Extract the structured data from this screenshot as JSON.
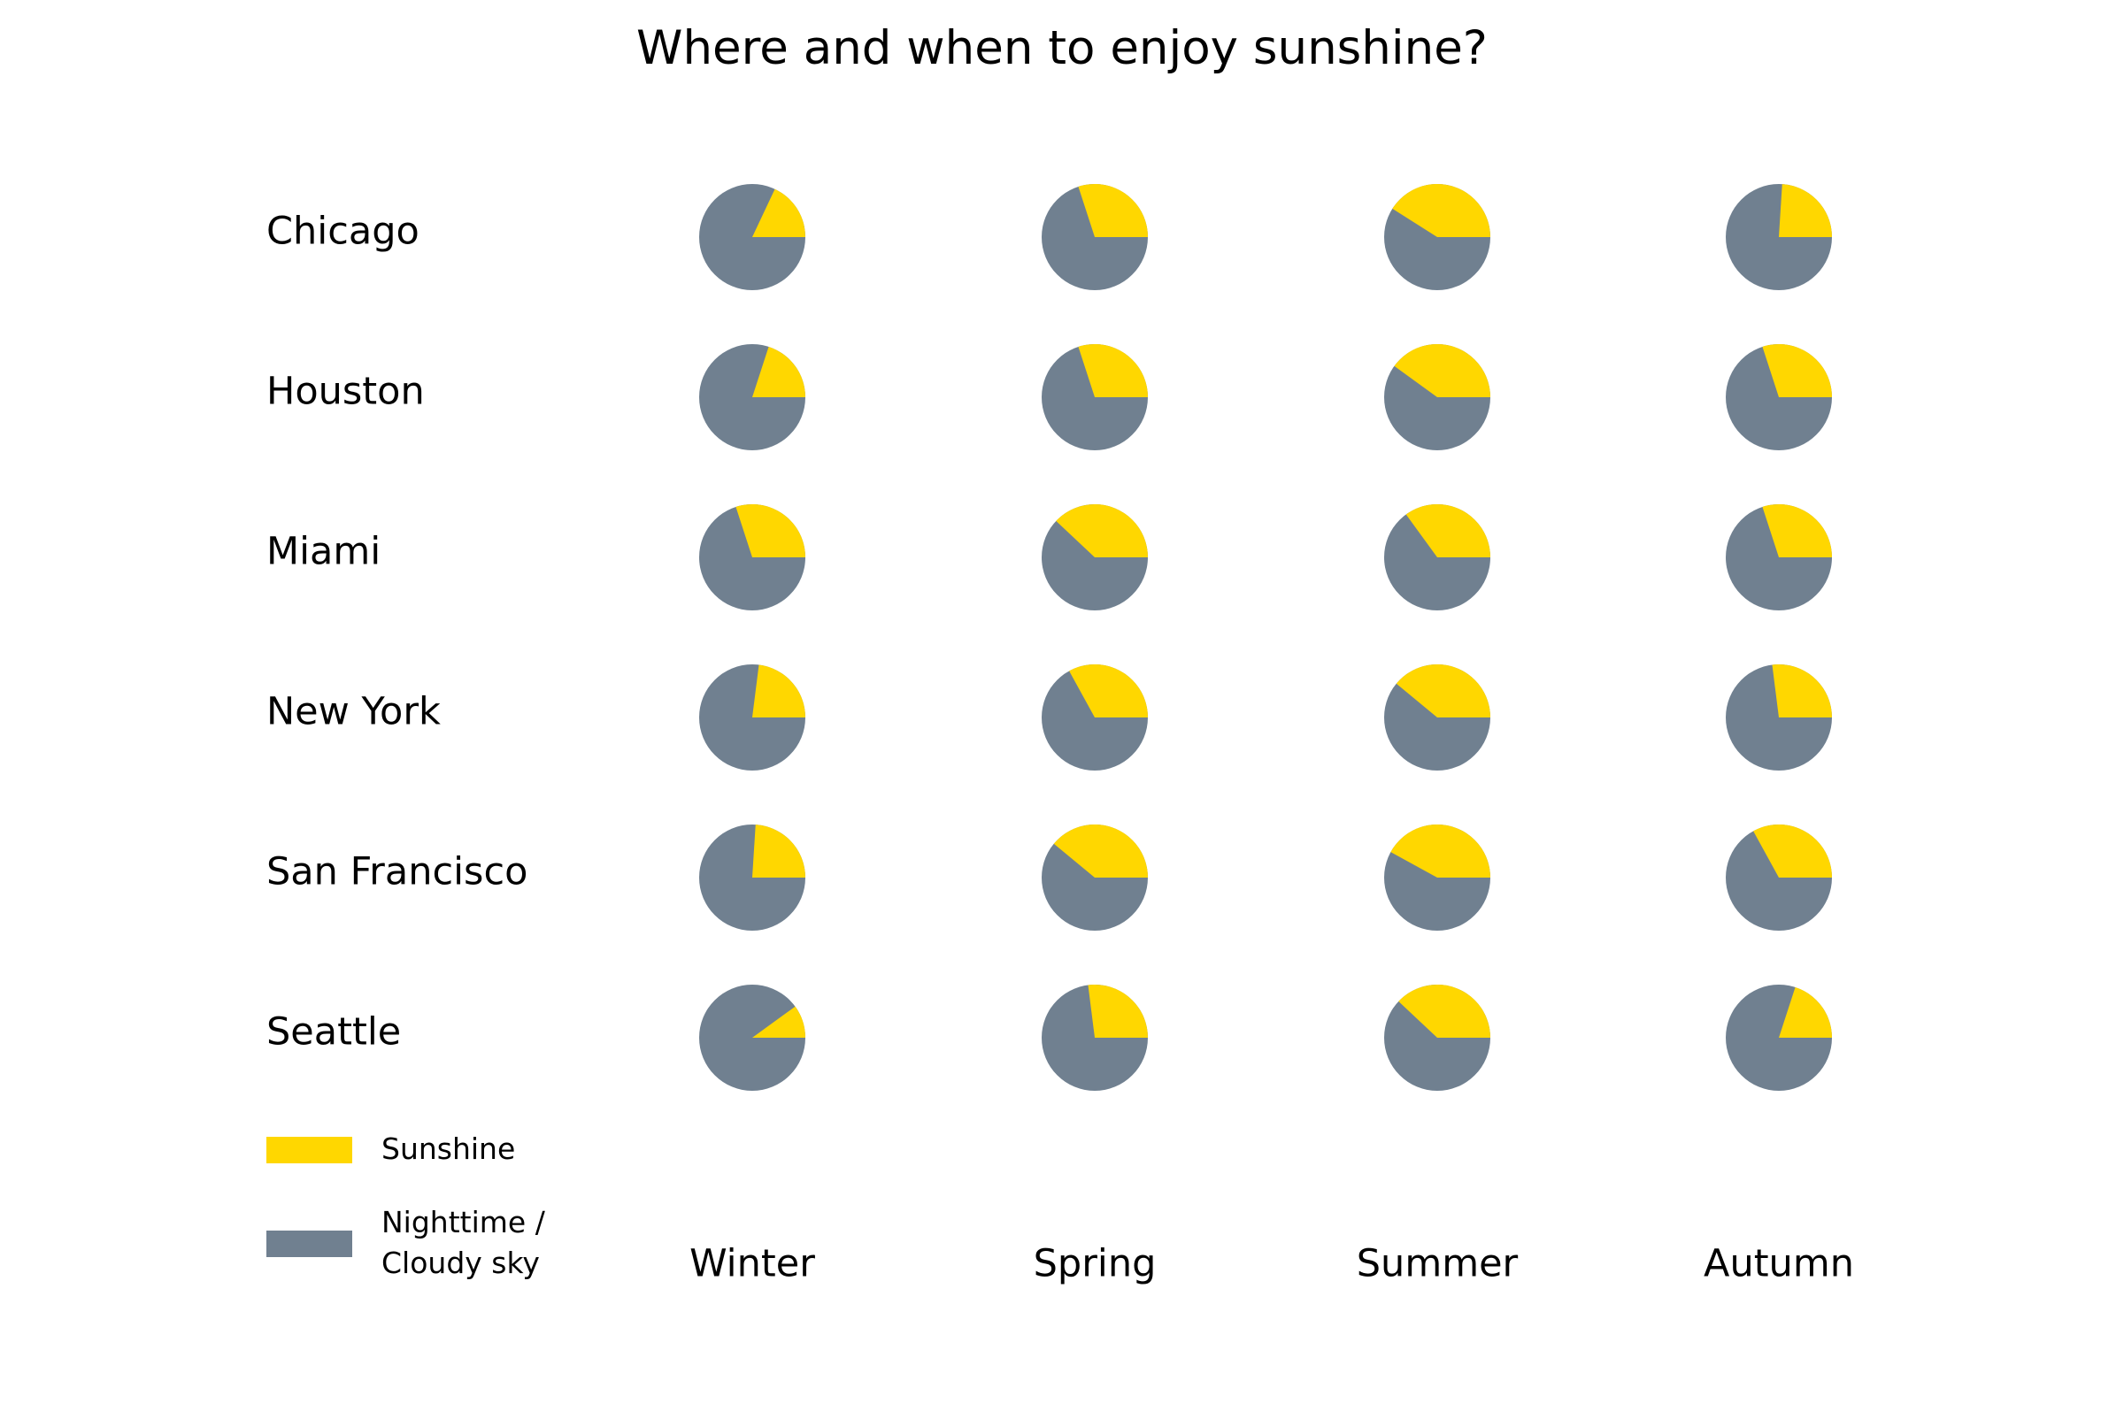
{
  "chart_data": {
    "type": "pie",
    "title": "Where and when to enjoy sunshine?",
    "layout": "pie grid: cities as rows, seasons as columns",
    "cities": [
      "Chicago",
      "Houston",
      "Miami",
      "New York",
      "San Francisco",
      "Seattle"
    ],
    "seasons": [
      "Winter",
      "Spring",
      "Summer",
      "Autumn"
    ],
    "series": [
      {
        "name": "Sunshine",
        "color": "#FFD700"
      },
      {
        "name": "Nighttime /\nCloudy sky",
        "color": "#708090"
      }
    ],
    "sunshine_fraction": [
      [
        0.18,
        0.3,
        0.41,
        0.24
      ],
      [
        0.2,
        0.3,
        0.4,
        0.3
      ],
      [
        0.3,
        0.38,
        0.35,
        0.3
      ],
      [
        0.23,
        0.33,
        0.39,
        0.27
      ],
      [
        0.24,
        0.39,
        0.42,
        0.33
      ],
      [
        0.1,
        0.27,
        0.38,
        0.2
      ]
    ],
    "start_angle": "0° (3 o'clock), counterclockwise; sunshine slice first",
    "legend": {
      "position": "bottom-left",
      "entries": [
        "Sunshine",
        "Nighttime /\nCloudy sky"
      ]
    }
  }
}
